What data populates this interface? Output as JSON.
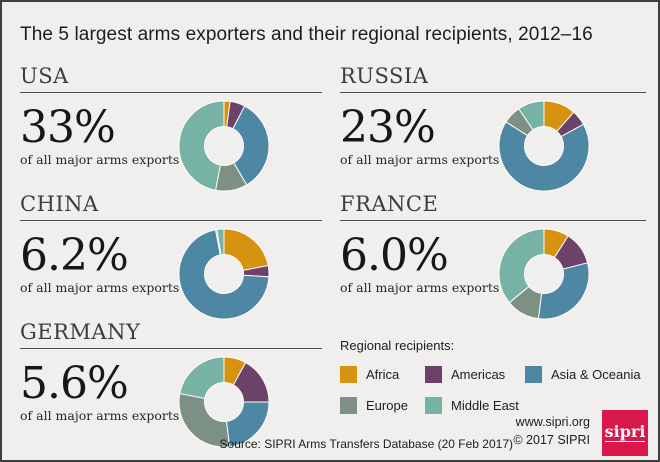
{
  "title": "The 5 largest arms exporters and their regional recipients, 2012–16",
  "chart_data": [
    {
      "type": "donut",
      "exporter": "USA",
      "share_label": "33%",
      "subtitle": "of all major arms exports",
      "categories": [
        "Africa",
        "Americas",
        "Asia & Oceania",
        "Europe",
        "Middle East"
      ],
      "values": [
        2.2,
        5.4,
        34,
        11.4,
        47
      ]
    },
    {
      "type": "donut",
      "exporter": "RUSSIA",
      "share_label": "23%",
      "subtitle": "of all major arms exports",
      "categories": [
        "Africa",
        "Americas",
        "Asia & Oceania",
        "Europe",
        "Middle East"
      ],
      "values": [
        11.5,
        5.5,
        67,
        6.5,
        9.5
      ]
    },
    {
      "type": "donut",
      "exporter": "CHINA",
      "share_label": "6.2%",
      "subtitle": "of all major arms exports",
      "categories": [
        "Africa",
        "Americas",
        "Asia & Oceania",
        "Europe",
        "Middle East"
      ],
      "values": [
        22,
        4,
        71,
        0.5,
        2.5
      ]
    },
    {
      "type": "donut",
      "exporter": "FRANCE",
      "share_label": "6.0%",
      "subtitle": "of all major arms exports",
      "categories": [
        "Africa",
        "Americas",
        "Asia & Oceania",
        "Europe",
        "Middle East"
      ],
      "values": [
        9,
        12,
        31,
        12,
        36
      ]
    },
    {
      "type": "donut",
      "exporter": "GERMANY",
      "share_label": "5.6%",
      "subtitle": "of all major arms exports",
      "categories": [
        "Africa",
        "Americas",
        "Asia & Oceania",
        "Europe",
        "Middle East"
      ],
      "values": [
        8,
        17,
        23,
        30,
        22
      ]
    }
  ],
  "legend": {
    "title": "Regional recipients:",
    "items": [
      {
        "label": "Africa",
        "color": "#d59310"
      },
      {
        "label": "Americas",
        "color": "#6c4269"
      },
      {
        "label": "Asia & Oceania",
        "color": "#4d87a3"
      },
      {
        "label": "Europe",
        "color": "#7c9084"
      },
      {
        "label": "Middle East",
        "color": "#77b3a4"
      }
    ]
  },
  "footer": {
    "source": "Source: SIPRI Arms Transfers Database (20 Feb 2017)",
    "website": "www.sipri.org",
    "copyright": "© 2017 SIPRI",
    "logo_text": "sipri"
  },
  "colors": {
    "background": "#f0efed",
    "frame_border": "#3e3e3c",
    "accent_red": "#d8174a",
    "text": "#1d1d1b",
    "rule": "#4d4e50",
    "segment_stroke": "#fcfcfb"
  }
}
